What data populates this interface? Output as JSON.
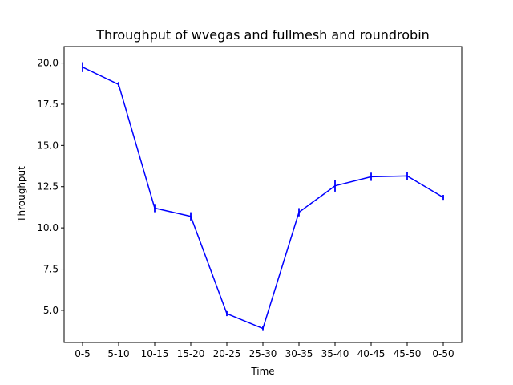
{
  "chart_data": {
    "type": "line",
    "title": "Throughput of wvegas and fullmesh and roundrobin",
    "xlabel": "Time",
    "ylabel": "Throughput",
    "categories": [
      "0-5",
      "5-10",
      "10-15",
      "15-20",
      "20-25",
      "25-30",
      "30-35",
      "35-40",
      "40-45",
      "45-50",
      "0-50"
    ],
    "series": [
      {
        "color": "#0000ff",
        "values": [
          19.75,
          18.7,
          11.2,
          10.7,
          4.8,
          3.9,
          10.95,
          12.55,
          13.1,
          13.15,
          11.85
        ],
        "err": [
          0.3,
          0.15,
          0.25,
          0.25,
          0.15,
          0.15,
          0.25,
          0.35,
          0.25,
          0.25,
          0.15
        ]
      }
    ],
    "ylim": [
      3.05,
      21.0
    ],
    "yticks": [
      "5.0",
      "7.5",
      "10.0",
      "12.5",
      "15.0",
      "17.5",
      "20.0"
    ],
    "grid": false
  }
}
